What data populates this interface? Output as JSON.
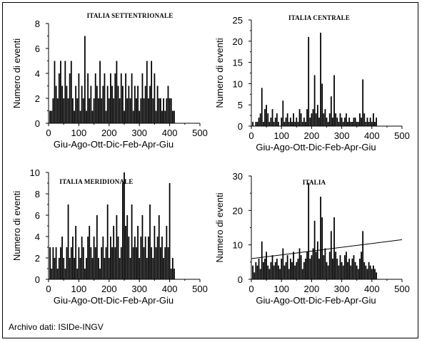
{
  "footer": {
    "source": "Archivo dati: ISIDe-INGV"
  },
  "chart_data": [
    {
      "type": "bar",
      "title": "ITALIA SETTENTRIONALE",
      "xlabel": "Giu-Ago-Ott-Dic-Feb-Apr-Giu",
      "ylabel": "Numero di eventi",
      "xlim": [
        0,
        500
      ],
      "ylim": [
        0,
        8
      ],
      "xticks": [
        0,
        100,
        200,
        300,
        400,
        500
      ],
      "yticks": [
        0,
        2,
        4,
        6,
        8
      ],
      "x": [
        5,
        10,
        15,
        20,
        25,
        30,
        35,
        40,
        45,
        50,
        55,
        60,
        65,
        70,
        75,
        80,
        85,
        90,
        95,
        100,
        105,
        110,
        115,
        120,
        125,
        130,
        135,
        140,
        145,
        150,
        155,
        160,
        165,
        170,
        175,
        180,
        185,
        190,
        195,
        200,
        205,
        210,
        215,
        220,
        225,
        230,
        235,
        240,
        245,
        250,
        255,
        260,
        265,
        270,
        275,
        280,
        285,
        290,
        295,
        300,
        305,
        310,
        315,
        320,
        325,
        330,
        335,
        340,
        345,
        350,
        355,
        360,
        365,
        370,
        375,
        380,
        385,
        390,
        395,
        400,
        405,
        410,
        415
      ],
      "values": [
        1,
        1,
        2,
        5,
        3,
        2,
        4,
        5,
        3,
        2,
        5,
        3,
        2,
        4,
        5,
        2,
        1,
        3,
        2,
        4,
        1,
        3,
        2,
        7,
        1,
        4,
        2,
        3,
        1,
        2,
        4,
        3,
        2,
        5,
        2,
        3,
        4,
        1,
        3,
        2,
        4,
        3,
        2,
        4,
        5,
        3,
        2,
        4,
        3,
        1,
        4,
        2,
        3,
        2,
        4,
        1,
        3,
        2,
        3,
        1,
        2,
        4,
        2,
        3,
        5,
        2,
        3,
        5,
        2,
        4,
        1,
        3,
        2,
        2,
        1,
        2,
        1,
        2,
        3,
        2,
        2,
        1,
        1
      ]
    },
    {
      "type": "bar",
      "title": "ITALIA CENTRALE",
      "xlabel": "Giu-Ago-Ott-Dic-Feb-Apr-Giu",
      "ylabel": "Numero di eventi",
      "xlim": [
        0,
        500
      ],
      "ylim": [
        0,
        25
      ],
      "xticks": [
        0,
        100,
        200,
        300,
        400,
        500
      ],
      "yticks": [
        0,
        5,
        10,
        15,
        20,
        25
      ],
      "x": [
        5,
        10,
        15,
        20,
        25,
        30,
        35,
        40,
        45,
        50,
        55,
        60,
        65,
        70,
        75,
        80,
        85,
        90,
        95,
        100,
        105,
        110,
        115,
        120,
        125,
        130,
        135,
        140,
        145,
        150,
        155,
        160,
        165,
        170,
        175,
        180,
        185,
        190,
        195,
        200,
        205,
        210,
        215,
        220,
        225,
        230,
        235,
        240,
        245,
        250,
        255,
        260,
        265,
        270,
        275,
        280,
        285,
        290,
        295,
        300,
        305,
        310,
        315,
        320,
        325,
        330,
        335,
        340,
        345,
        350,
        355,
        360,
        365,
        370,
        375,
        380,
        385,
        390,
        395,
        400,
        405,
        410,
        415
      ],
      "values": [
        1,
        0,
        1,
        1,
        2,
        3,
        9,
        1,
        4,
        5,
        3,
        1,
        2,
        4,
        1,
        2,
        3,
        1,
        0,
        2,
        6,
        1,
        2,
        3,
        1,
        2,
        1,
        3,
        1,
        2,
        1,
        4,
        3,
        1,
        2,
        1,
        4,
        21,
        2,
        3,
        4,
        12,
        3,
        5,
        2,
        22,
        10,
        3,
        4,
        2,
        1,
        3,
        7,
        2,
        12,
        3,
        2,
        1,
        3,
        2,
        1,
        2,
        3,
        1,
        2,
        1,
        1,
        2,
        2,
        1,
        1,
        3,
        2,
        11,
        3,
        1,
        2,
        1,
        2,
        1,
        3,
        1,
        2
      ]
    },
    {
      "type": "bar",
      "title": "ITALIA MERIDIONALE",
      "xlabel": "Giu-Ago-Ott-Dic-Feb-Apr-Giu",
      "ylabel": "Numero di eventi",
      "xlim": [
        0,
        500
      ],
      "ylim": [
        0,
        10
      ],
      "xticks": [
        0,
        100,
        200,
        300,
        400,
        500
      ],
      "yticks": [
        0,
        2,
        4,
        6,
        8,
        10
      ],
      "x": [
        5,
        10,
        15,
        20,
        25,
        30,
        35,
        40,
        45,
        50,
        55,
        60,
        65,
        70,
        75,
        80,
        85,
        90,
        95,
        100,
        105,
        110,
        115,
        120,
        125,
        130,
        135,
        140,
        145,
        150,
        155,
        160,
        165,
        170,
        175,
        180,
        185,
        190,
        195,
        200,
        205,
        210,
        215,
        220,
        225,
        230,
        235,
        240,
        245,
        250,
        255,
        260,
        265,
        270,
        275,
        280,
        285,
        290,
        295,
        300,
        305,
        310,
        315,
        320,
        325,
        330,
        335,
        340,
        345,
        350,
        355,
        360,
        365,
        370,
        375,
        380,
        385,
        390,
        395,
        400,
        405,
        410,
        415
      ],
      "values": [
        3,
        1,
        3,
        2,
        3,
        1,
        2,
        3,
        4,
        2,
        1,
        3,
        7,
        2,
        3,
        4,
        2,
        5,
        1,
        3,
        2,
        4,
        3,
        1,
        2,
        4,
        5,
        3,
        2,
        4,
        3,
        6,
        2,
        1,
        3,
        4,
        2,
        3,
        7,
        2,
        4,
        3,
        5,
        3,
        6,
        4,
        2,
        3,
        9,
        10,
        5,
        6,
        4,
        2,
        7,
        3,
        4,
        3,
        5,
        2,
        4,
        6,
        3,
        4,
        2,
        4,
        7,
        3,
        2,
        5,
        3,
        4,
        6,
        3,
        4,
        2,
        3,
        5,
        3,
        9,
        1,
        2,
        1
      ]
    },
    {
      "type": "bar",
      "title": "ITALIA",
      "xlabel": "Giu-Ago-Ott-Dic-Feb-Apr-Giu",
      "ylabel": "Numero di eventi",
      "xlim": [
        0,
        500
      ],
      "ylim": [
        0,
        30
      ],
      "xticks": [
        0,
        100,
        200,
        300,
        400,
        500
      ],
      "yticks": [
        0,
        10,
        20,
        30
      ],
      "trend": {
        "x": [
          0,
          500
        ],
        "y": [
          6,
          11.5
        ]
      },
      "x": [
        5,
        10,
        15,
        20,
        25,
        30,
        35,
        40,
        45,
        50,
        55,
        60,
        65,
        70,
        75,
        80,
        85,
        90,
        95,
        100,
        105,
        110,
        115,
        120,
        125,
        130,
        135,
        140,
        145,
        150,
        155,
        160,
        165,
        170,
        175,
        180,
        185,
        190,
        195,
        200,
        205,
        210,
        215,
        220,
        225,
        230,
        235,
        240,
        245,
        250,
        255,
        260,
        265,
        270,
        275,
        280,
        285,
        290,
        295,
        300,
        305,
        310,
        315,
        320,
        325,
        330,
        335,
        340,
        345,
        350,
        355,
        360,
        365,
        370,
        375,
        380,
        385,
        390,
        395,
        400,
        405,
        410,
        415
      ],
      "values": [
        4,
        2,
        5,
        4,
        6,
        3,
        11,
        5,
        6,
        8,
        4,
        3,
        5,
        7,
        4,
        5,
        6,
        4,
        3,
        6,
        9,
        4,
        5,
        7,
        3,
        6,
        5,
        8,
        4,
        5,
        6,
        9,
        7,
        3,
        5,
        6,
        8,
        28,
        6,
        7,
        9,
        17,
        8,
        11,
        6,
        24,
        18,
        7,
        9,
        5,
        4,
        8,
        14,
        6,
        18,
        8,
        6,
        4,
        7,
        5,
        4,
        7,
        8,
        5,
        6,
        4,
        6,
        7,
        5,
        4,
        3,
        6,
        8,
        14,
        5,
        4,
        3,
        5,
        4,
        3,
        4,
        3,
        2
      ]
    }
  ]
}
